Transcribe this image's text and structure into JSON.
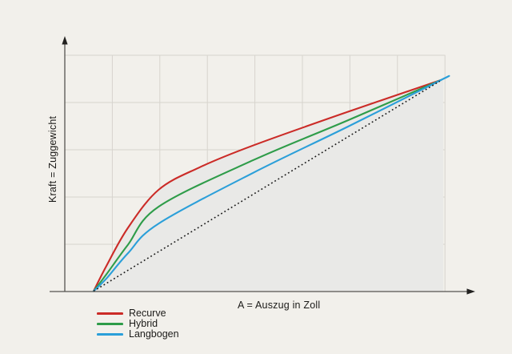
{
  "chart": {
    "y_axis_label": "Kraft = Zuggewicht",
    "x_axis_label": "A = Auszug in Zoll",
    "legend": [
      {
        "label": "Recurve",
        "color": "#cb2b27"
      },
      {
        "label": "Hybrid",
        "color": "#2e9c49"
      },
      {
        "label": "Langbogen",
        "color": "#2b9fd9"
      }
    ],
    "colors": {
      "background": "#f2f0eb",
      "grid": "#d7d4ce",
      "area_fill": "#e9e9e7",
      "axis": "#55534f",
      "arrow": "#22211f",
      "reference_line": "#1a1a1a"
    }
  },
  "chart_data": {
    "type": "line",
    "title": "",
    "xlabel": "A = Auszug in Zoll",
    "ylabel": "Kraft = Zuggewicht",
    "axes_note": "Qualitative sketch: no numeric tick labels; x = draw length (normalized 0-1), y = draw weight (normalized 0-1). All curves start at origin of draw and converge at full draw.",
    "grid": {
      "shown": true,
      "vertical_lines": 8,
      "horizontal_lines": 5
    },
    "legend_position": "bottom-left",
    "xlim": [
      0,
      1
    ],
    "ylim": [
      0,
      1
    ],
    "series": [
      {
        "name": "Recurve",
        "color": "#cb2b27",
        "style": "solid",
        "x": [
          0,
          0.037,
          0.099,
          0.187,
          0.303,
          0.459,
          0.733,
          1
        ],
        "y": [
          0,
          0.12,
          0.3,
          0.48,
          0.585,
          0.69,
          0.85,
          1
        ]
      },
      {
        "name": "Hybrid",
        "color": "#2e9c49",
        "style": "solid",
        "x": [
          0,
          0.037,
          0.099,
          0.187,
          0.459,
          0.733,
          1
        ],
        "y": [
          0,
          0.08,
          0.22,
          0.4,
          0.62,
          0.81,
          1
        ]
      },
      {
        "name": "Langbogen",
        "color": "#2b9fd9",
        "style": "solid",
        "x": [
          0,
          0.037,
          0.099,
          0.187,
          0.459,
          0.733,
          1,
          1.013
        ],
        "y": [
          0,
          0.06,
          0.18,
          0.32,
          0.56,
          0.78,
          1,
          1.01
        ]
      },
      {
        "name": "linear reference",
        "color": "#1a1a1a",
        "style": "dotted",
        "x": [
          0,
          0.997
        ],
        "y": [
          0,
          0.995
        ]
      }
    ],
    "area_fill": {
      "under_series": "Recurve",
      "color": "#e9e9e7"
    }
  }
}
